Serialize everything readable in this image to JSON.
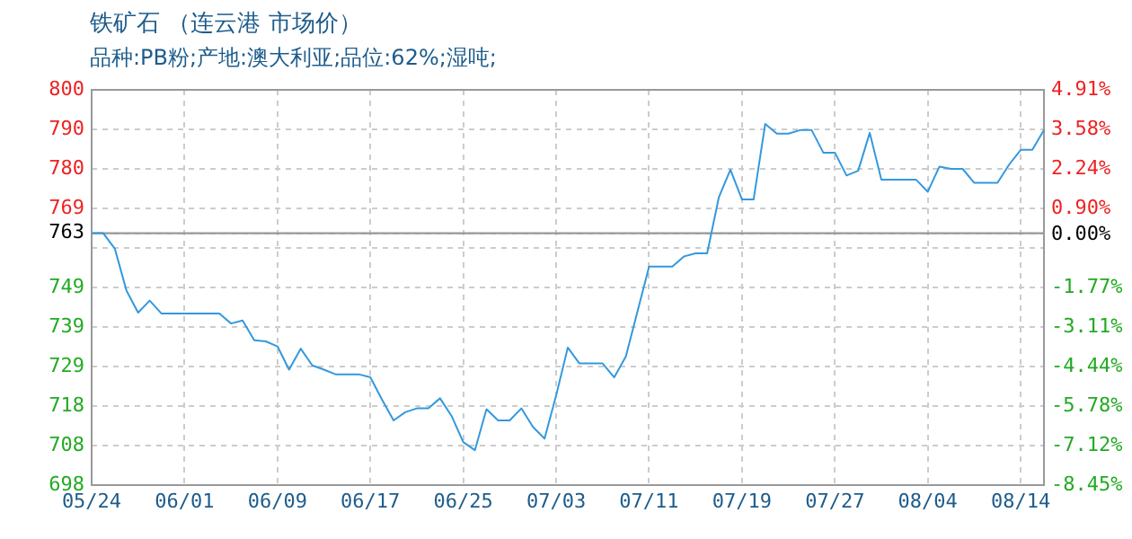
{
  "chart_data": {
    "type": "line",
    "title": "铁矿石 （连云港 市场价）",
    "subtitle": "品种:PB粉;产地:澳大利亚;品位:62%;湿吨;",
    "categories": [
      "05/24",
      null,
      null,
      null,
      null,
      null,
      null,
      null,
      "06/01",
      null,
      null,
      null,
      null,
      null,
      null,
      null,
      "06/09",
      null,
      null,
      null,
      null,
      null,
      null,
      null,
      "06/17",
      null,
      null,
      null,
      null,
      null,
      null,
      null,
      "06/25",
      null,
      null,
      null,
      null,
      null,
      null,
      null,
      "07/03",
      null,
      null,
      null,
      null,
      null,
      null,
      null,
      "07/11",
      null,
      null,
      null,
      null,
      null,
      null,
      null,
      "07/19",
      null,
      null,
      null,
      null,
      null,
      null,
      null,
      "07/27",
      null,
      null,
      null,
      null,
      null,
      null,
      null,
      "08/04",
      null,
      null,
      null,
      null,
      null,
      null,
      null,
      "08/14",
      null,
      null
    ],
    "series": [
      {
        "color": "#3399dd",
        "values": [
          763,
          763,
          759,
          748.2,
          742.5,
          745.6,
          742.3,
          742.3,
          742.3,
          742.3,
          742.3,
          742.3,
          739.7,
          740.5,
          735.4,
          735.1,
          733.8,
          727.8,
          733.2,
          728.9,
          727.8,
          726.6,
          726.6,
          726.6,
          725.8,
          720.1,
          714.7,
          716.8,
          717.8,
          717.8,
          720.4,
          715.8,
          709.1,
          707,
          717.6,
          714.7,
          714.7,
          717.8,
          713,
          710,
          721.2,
          733.5,
          729.4,
          729.4,
          729.4,
          725.8,
          731.2,
          742.8,
          754.4,
          754.4,
          754.4,
          757,
          757.8,
          757.8,
          772.2,
          779.4,
          771.7,
          771.7,
          791.2,
          788.7,
          788.7,
          789.6,
          789.6,
          783.8,
          783.8,
          777.9,
          779.1,
          788.9,
          776.8,
          776.8,
          776.8,
          776.8,
          773.7,
          780.2,
          779.6,
          779.6,
          776,
          776,
          776,
          780.7,
          784.5,
          784.5,
          789.6
        ]
      }
    ],
    "ylim": [
      698,
      800
    ],
    "yticks": [
      800,
      {
        "value": 789.8,
        "label": "790"
      },
      {
        "value": 779.6,
        "label": "780"
      },
      {
        "value": 769.4,
        "label": "769"
      },
      763,
      {
        "value": 759.2,
        "label": null
      },
      749,
      {
        "value": 738.8,
        "label": "739"
      },
      {
        "value": 728.6,
        "label": "729"
      },
      {
        "value": 718.4,
        "label": "718"
      },
      {
        "value": 708.2,
        "label": "708"
      },
      698
    ],
    "y2lim": [
      -8.45,
      4.91
    ],
    "y2ticks": [
      {
        "value": 4.91,
        "label": "4.91%"
      },
      {
        "value": 3.58,
        "label": "3.58%"
      },
      {
        "value": 2.24,
        "label": "2.24%"
      },
      {
        "value": 0.9,
        "label": "0.90%"
      },
      {
        "value": 0,
        "label": "0.00%"
      },
      {
        "value": -1.77,
        "label": "-1.77%"
      },
      {
        "value": -3.11,
        "label": "-3.11%"
      },
      {
        "value": -4.44,
        "label": "-4.44%"
      },
      {
        "value": -5.78,
        "label": "-5.78%"
      },
      {
        "value": -7.12,
        "label": "-7.12%"
      },
      {
        "value": -8.45,
        "label": "-8.45%"
      }
    ],
    "ref_lines": [
      {
        "axis": "y",
        "value": 763,
        "color": "#999999"
      }
    ],
    "grid": true,
    "legend": false,
    "marker": "none",
    "line_style": "solid"
  }
}
